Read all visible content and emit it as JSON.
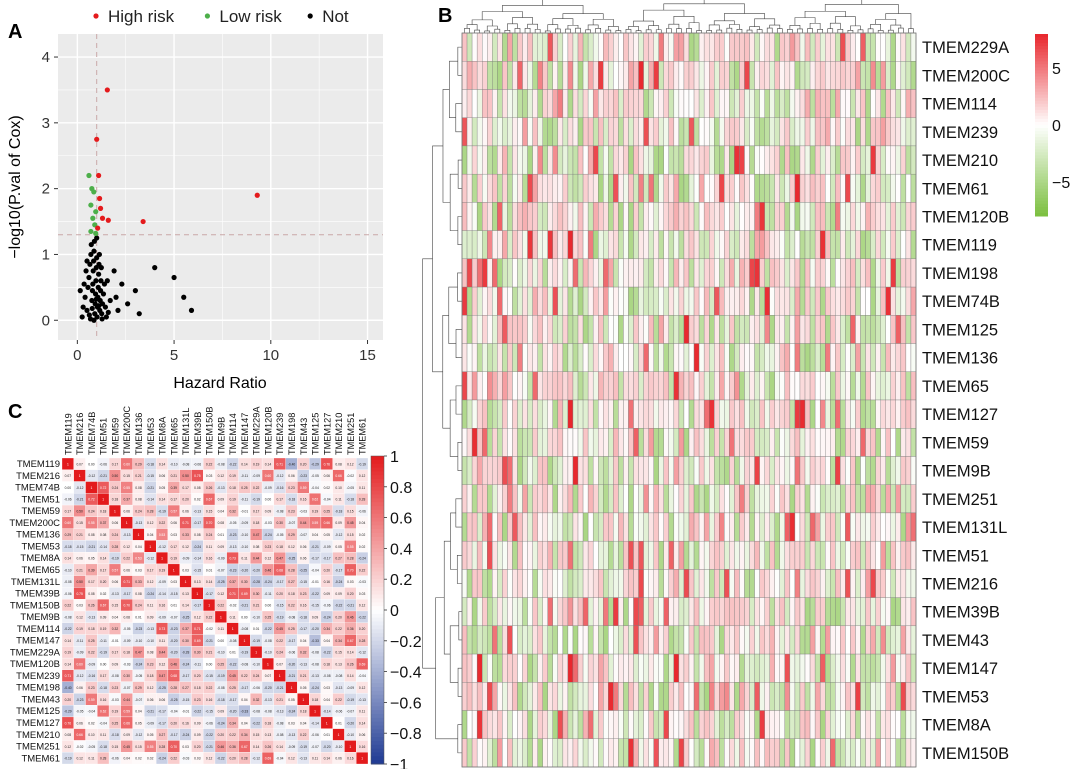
{
  "panels": {
    "a": "A",
    "b": "B",
    "c": "C"
  },
  "colors": {
    "high": "#e41a1c",
    "low": "#4daf4a",
    "not": "#000000",
    "panel_bg": "#ebebeb",
    "grid": "#ffffff",
    "hm_high": "#e8262c",
    "hm_mid": "#ffffff",
    "hm_low": "#7bbf3f",
    "corr_pos": "#e31a1c",
    "corr_neg": "#1f3a93"
  },
  "chart_data": [
    {
      "id": "volcano",
      "type": "scatter",
      "title": "",
      "xlabel": "Hazard Ratio",
      "ylabel": "−log10(P.val of Cox)",
      "xlim": [
        -1,
        15.8
      ],
      "ylim": [
        -0.3,
        4.35
      ],
      "xticks": [
        "0",
        "5",
        "10",
        "15"
      ],
      "yticks": [
        "0",
        "1",
        "2",
        "3",
        "4"
      ],
      "threshold_x": 1,
      "threshold_y": 1.3,
      "legend": [
        {
          "label": "High risk",
          "color": "#e41a1c"
        },
        {
          "label": "Low risk",
          "color": "#4daf4a"
        },
        {
          "label": "Not",
          "color": "#000000"
        }
      ],
      "series": [
        {
          "name": "High risk",
          "points": [
            [
              1.55,
              3.5
            ],
            [
              1.0,
              2.75
            ],
            [
              9.3,
              1.9
            ],
            [
              1.1,
              2.2
            ],
            [
              3.4,
              1.5
            ],
            [
              1.3,
              1.55
            ],
            [
              1.6,
              1.52
            ],
            [
              1.15,
              1.85
            ],
            [
              1.2,
              1.7
            ],
            [
              1.05,
              1.4
            ]
          ]
        },
        {
          "name": "Low risk",
          "points": [
            [
              0.6,
              2.2
            ],
            [
              0.75,
              2.0
            ],
            [
              0.85,
              1.95
            ],
            [
              0.7,
              1.75
            ],
            [
              0.95,
              1.65
            ],
            [
              0.8,
              1.55
            ],
            [
              0.9,
              1.45
            ],
            [
              0.7,
              1.35
            ],
            [
              0.95,
              1.32
            ]
          ]
        },
        {
          "name": "Not",
          "points": [
            [
              0.3,
              0.2
            ],
            [
              0.4,
              0.35
            ],
            [
              0.5,
              0.15
            ],
            [
              0.55,
              0.5
            ],
            [
              0.6,
              0.65
            ],
            [
              0.65,
              0.85
            ],
            [
              0.7,
              1.0
            ],
            [
              0.72,
              1.15
            ],
            [
              0.75,
              0.3
            ],
            [
              0.78,
              0.45
            ],
            [
              0.8,
              0.55
            ],
            [
              0.82,
              0.75
            ],
            [
              0.84,
              0.9
            ],
            [
              0.86,
              1.05
            ],
            [
              0.88,
              1.2
            ],
            [
              0.9,
              0.1
            ],
            [
              0.92,
              0.25
            ],
            [
              0.94,
              0.4
            ],
            [
              0.96,
              0.6
            ],
            [
              0.98,
              0.8
            ],
            [
              1.0,
              0.95
            ],
            [
              1.02,
              0.05
            ],
            [
              1.04,
              0.2
            ],
            [
              1.06,
              0.35
            ],
            [
              1.08,
              0.5
            ],
            [
              1.1,
              0.7
            ],
            [
              1.12,
              0.85
            ],
            [
              1.14,
              1.0
            ],
            [
              1.16,
              0.15
            ],
            [
              1.18,
              0.3
            ],
            [
              1.2,
              0.45
            ],
            [
              1.22,
              0.6
            ],
            [
              1.24,
              0.8
            ],
            [
              1.26,
              0.1
            ],
            [
              1.3,
              0.25
            ],
            [
              1.35,
              0.4
            ],
            [
              1.4,
              0.55
            ],
            [
              1.45,
              0.2
            ],
            [
              1.5,
              0.05
            ],
            [
              1.6,
              0.12
            ],
            [
              1.7,
              0.3
            ],
            [
              0.45,
              0.75
            ],
            [
              0.5,
              0.9
            ],
            [
              0.35,
              0.55
            ],
            [
              0.62,
              0.08
            ],
            [
              0.68,
              0.02
            ],
            [
              0.86,
              0.0
            ],
            [
              1.28,
              0.02
            ],
            [
              1.55,
              0.6
            ],
            [
              2.0,
              0.35
            ],
            [
              2.3,
              0.55
            ],
            [
              2.6,
              0.25
            ],
            [
              3.0,
              0.45
            ],
            [
              2.1,
              0.15
            ],
            [
              5.0,
              0.65
            ],
            [
              5.5,
              0.35
            ],
            [
              4.0,
              0.8
            ],
            [
              3.2,
              0.1
            ],
            [
              5.9,
              0.15
            ],
            [
              1.9,
              0.75
            ],
            [
              0.15,
              0.45
            ],
            [
              0.25,
              0.05
            ],
            [
              1.0,
              1.25
            ],
            [
              0.98,
              0.32
            ],
            [
              1.11,
              0.22
            ],
            [
              0.77,
              0.18
            ]
          ]
        }
      ]
    },
    {
      "id": "heatmap",
      "type": "heatmap",
      "title": "",
      "rows": [
        "TMEM229A",
        "TMEM200C",
        "TMEM114",
        "TMEM239",
        "TMEM210",
        "TMEM61",
        "TMEM120B",
        "TMEM119",
        "TMEM198",
        "TMEM74B",
        "TMEM125",
        "TMEM136",
        "TMEM65",
        "TMEM127",
        "TMEM59",
        "TMEM9B",
        "TMEM251",
        "TMEM131L",
        "TMEM51",
        "TMEM216",
        "TMEM39B",
        "TMEM43",
        "TMEM147",
        "TMEM53",
        "TMEM8A",
        "TMEM150B"
      ],
      "n_columns": 90,
      "value_range": [
        -8,
        8
      ],
      "colorbar_ticks": [
        "5",
        "0",
        "−5"
      ],
      "colorbar_values": [
        5,
        0,
        -5
      ],
      "values": null
    },
    {
      "id": "correlation",
      "type": "heatmap",
      "title": "",
      "labels": [
        "TMEM119",
        "TMEM216",
        "TMEM74B",
        "TMEM51",
        "TMEM59",
        "TMEM200C",
        "TMEM136",
        "TMEM53",
        "TMEM8A",
        "TMEM65",
        "TMEM131L",
        "TMEM39B",
        "TMEM150B",
        "TMEM9B",
        "TMEM114",
        "TMEM147",
        "TMEM229A",
        "TMEM120B",
        "TMEM239",
        "TMEM198",
        "TMEM43",
        "TMEM125",
        "TMEM127",
        "TMEM210",
        "TMEM251",
        "TMEM61"
      ],
      "value_range": [
        -1,
        1
      ],
      "colorbar_ticks": [
        "1",
        "0.8",
        "0.6",
        "0.4",
        "0.2",
        "0",
        "−0.2",
        "−0.4",
        "−0.6",
        "−0.8",
        "−1"
      ],
      "colorbar_values": [
        1,
        0.8,
        0.6,
        0.4,
        0.2,
        0,
        -0.2,
        -0.4,
        -0.6,
        -0.8,
        -1
      ],
      "values": null
    }
  ]
}
